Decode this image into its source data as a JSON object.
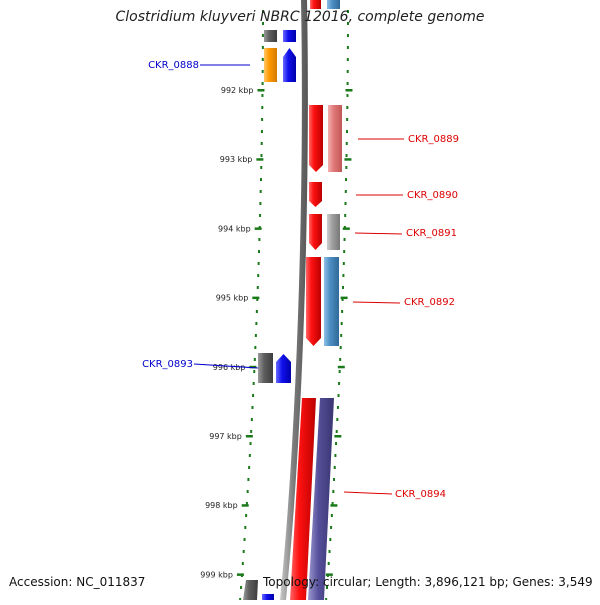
{
  "title": "Clostridium kluyveri NBRC 12016, complete genome",
  "accession_text": "Accession: NC_011837",
  "summary_text": "Topology: circular; Length: 3,896,121 bp; Genes: 3,549",
  "colors": {
    "label_left": "#0000cc",
    "label_right": "#dd0000",
    "tick": "#1a7a1a",
    "backbone": "#888888",
    "red": "#ee1111",
    "pink": "#e88080",
    "steel": "#4d8fc4",
    "grey": "#888888",
    "orange": "#ff9900",
    "blue": "#1111ee",
    "purple": "#55509a",
    "dark": "#555555"
  },
  "scale": {
    "ticks": [
      "992 kbp",
      "993 kbp",
      "994 kbp",
      "995 kbp",
      "996 kbp",
      "997 kbp",
      "998 kbp",
      "999 kbp"
    ]
  },
  "genes_left": [
    {
      "label": "CKR_0888"
    },
    {
      "label": "CKR_0893"
    }
  ],
  "genes_right": [
    {
      "label": "CKR_0889"
    },
    {
      "label": "CKR_0890"
    },
    {
      "label": "CKR_0891"
    },
    {
      "label": "CKR_0892"
    },
    {
      "label": "CKR_0894"
    }
  ]
}
